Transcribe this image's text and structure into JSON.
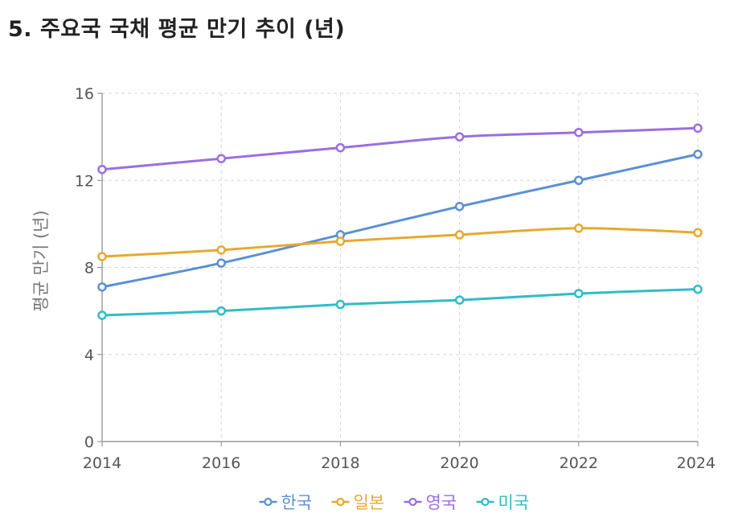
{
  "page": {
    "title": "5. 주요국 국채 평균 만기 추이 (년)"
  },
  "chart_data": {
    "type": "line",
    "title": "5. 주요국 국채 평균 만기 추이 (년)",
    "xlabel": "",
    "ylabel": "평균 만기 (년)",
    "x": [
      2014,
      2016,
      2018,
      2020,
      2022,
      2024
    ],
    "x_ticks": [
      "2014",
      "2016",
      "2018",
      "2020",
      "2022",
      "2024"
    ],
    "y_ticks": [
      0,
      4,
      8,
      12,
      16
    ],
    "ylim": [
      0,
      16
    ],
    "grid": true,
    "legend_position": "bottom",
    "series": [
      {
        "name": "한국",
        "color": "#5b8fd6",
        "values": [
          7.1,
          8.2,
          9.5,
          10.8,
          12.0,
          13.2
        ]
      },
      {
        "name": "일본",
        "color": "#e6a92e",
        "values": [
          8.5,
          8.8,
          9.2,
          9.5,
          9.8,
          9.6
        ]
      },
      {
        "name": "영국",
        "color": "#9b6ee0",
        "values": [
          12.5,
          13.0,
          13.5,
          14.0,
          14.2,
          14.4
        ]
      },
      {
        "name": "미국",
        "color": "#2fbcc8",
        "values": [
          5.8,
          6.0,
          6.3,
          6.5,
          6.8,
          7.0
        ]
      }
    ]
  }
}
